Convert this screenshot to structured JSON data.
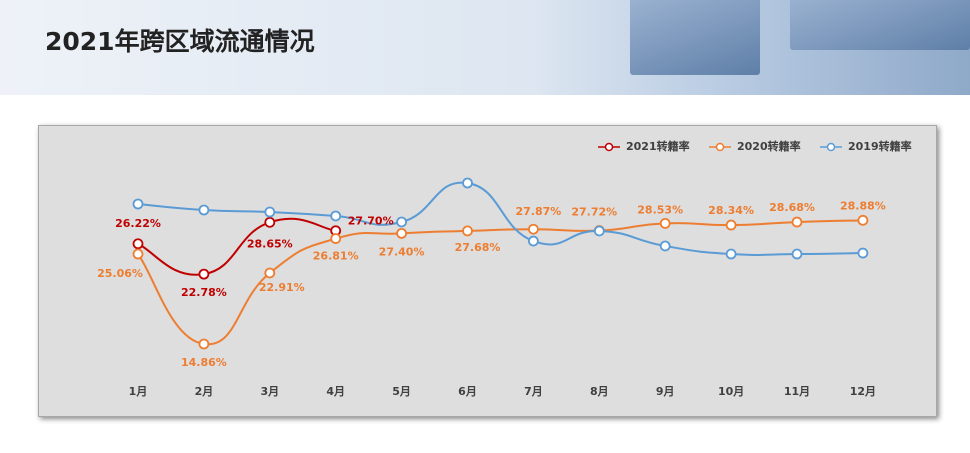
{
  "header": {
    "title": "2021年跨区域流通情况"
  },
  "chart_data": {
    "type": "line",
    "categories": [
      "1月",
      "2月",
      "3月",
      "4月",
      "5月",
      "6月",
      "7月",
      "8月",
      "9月",
      "10月",
      "11月",
      "12月"
    ],
    "legend": "top-right",
    "series": [
      {
        "name": "2021转籍率",
        "color": "#c00000",
        "values": [
          26.22,
          22.78,
          28.65,
          27.7,
          null,
          null,
          null,
          null,
          null,
          null,
          null,
          null
        ],
        "value_labels": [
          "26.22%",
          "22.78%",
          "28.65%",
          "27.70%",
          null,
          null,
          null,
          null,
          null,
          null,
          null,
          null
        ]
      },
      {
        "name": "2020转籍率",
        "color": "#ed7d31",
        "values": [
          25.06,
          14.86,
          22.91,
          26.81,
          27.4,
          27.68,
          27.87,
          27.72,
          28.53,
          28.34,
          28.68,
          28.88
        ],
        "value_labels": [
          "25.06%",
          "14.86%",
          "22.91%",
          "26.81%",
          "27.40%",
          "27.68%",
          "27.87%",
          "27.72%",
          "28.53%",
          "28.34%",
          "28.68%",
          "28.88%"
        ]
      },
      {
        "name": "2019转籍率",
        "color": "#5b9bd5",
        "values": [
          30.73,
          30.05,
          29.82,
          29.37,
          28.69,
          33.11,
          26.53,
          27.67,
          25.97,
          25.06,
          25.06,
          25.17
        ]
      }
    ]
  }
}
